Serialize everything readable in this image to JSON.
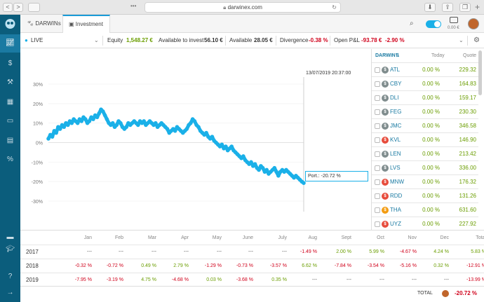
{
  "browser": {
    "url": "darwinex.com",
    "back": "<",
    "forward": ">",
    "dots": "•••",
    "reload": "↻",
    "new_tab": "+"
  },
  "appbar": {
    "tab_darwins": "DARWINs",
    "tab_investment": "Investment",
    "balance": "0.00 €"
  },
  "stats": {
    "mode": "LIVE",
    "equity_label": "Equity",
    "equity_value": "1,548.27 €",
    "invest_label": "Available to invest",
    "invest_value": "56.10 €",
    "avail_label": "Available",
    "avail_value": "28.05 €",
    "div_label": "Divergence",
    "div_value": "-0.38 %",
    "pnl_label": "Open P&L",
    "pnl_value": "-93.78 €",
    "pnl_pct": "-2.90 %"
  },
  "chart": {
    "timestamp": "13/07/2019 20:37:00",
    "tooltip": "Port.: -20.72 %",
    "color": "#1ab0e8"
  },
  "chart_data": {
    "type": "line",
    "ylim": [
      -30,
      30
    ],
    "yticks": [
      "30%",
      "20%",
      "10%",
      "0%",
      "-10%",
      "-20%",
      "-30%"
    ],
    "ytick_values": [
      30,
      20,
      10,
      0,
      -10,
      -20,
      -30
    ],
    "series": [
      {
        "values": [
          2,
          4,
          3,
          6,
          5,
          8,
          7,
          9,
          8,
          10,
          9,
          11,
          10,
          12,
          11,
          10,
          12,
          11,
          13,
          12,
          10,
          11,
          13,
          12,
          14,
          13,
          15,
          17,
          16,
          14,
          12,
          10,
          9,
          10,
          8,
          9,
          11,
          10,
          8,
          7,
          8,
          10,
          9,
          10,
          11,
          10,
          9,
          11,
          10,
          11,
          9,
          10,
          11,
          10,
          9,
          10,
          8,
          9,
          10,
          9,
          8,
          7,
          5,
          6,
          7,
          6,
          8,
          7,
          6,
          5,
          6,
          7,
          9,
          10,
          12,
          11,
          9,
          8,
          6,
          5,
          4,
          5,
          3,
          2,
          3,
          1,
          0,
          -1,
          -2,
          -1,
          -3,
          -2,
          -4,
          -3,
          -2,
          -4,
          -5,
          -6,
          -7,
          -8,
          -7,
          -9,
          -10,
          -11,
          -10,
          -12,
          -11,
          -13,
          -14,
          -12,
          -13,
          -15,
          -14,
          -16,
          -15,
          -14,
          -13,
          -15,
          -17,
          -15,
          -14,
          -15,
          -14,
          -15,
          -16,
          -17,
          -18,
          -17,
          -18,
          -19,
          -20,
          -20.72
        ]
      }
    ]
  },
  "darwins": {
    "col_name": "DARWIN⇅",
    "col_today": "Today",
    "col_quote": "Quote",
    "rows": [
      {
        "name": "ATL",
        "today": "0.00 %",
        "quote": "229.32",
        "color": "#7f8c8d"
      },
      {
        "name": "CBY",
        "today": "0.00 %",
        "quote": "164.83",
        "color": "#7f8c8d"
      },
      {
        "name": "DLI",
        "today": "0.00 %",
        "quote": "159.17",
        "color": "#7f8c8d"
      },
      {
        "name": "FEG",
        "today": "0.00 %",
        "quote": "230.30",
        "color": "#7f8c8d"
      },
      {
        "name": "JMC",
        "today": "0.00 %",
        "quote": "346.58",
        "color": "#7f8c8d"
      },
      {
        "name": "KVL",
        "today": "0.00 %",
        "quote": "146.90",
        "color": "#e74c3c"
      },
      {
        "name": "LEN",
        "today": "0.00 %",
        "quote": "213.42",
        "color": "#7f8c8d"
      },
      {
        "name": "LVS",
        "today": "0.00 %",
        "quote": "336.00",
        "color": "#7f8c8d"
      },
      {
        "name": "MNW",
        "today": "0.00 %",
        "quote": "176.32",
        "color": "#e74c3c"
      },
      {
        "name": "RDD",
        "today": "0.00 %",
        "quote": "131.26",
        "color": "#e74c3c"
      },
      {
        "name": "THA",
        "today": "0.00 %",
        "quote": "631.60",
        "color": "#f39c12"
      },
      {
        "name": "UYZ",
        "today": "0.00 %",
        "quote": "227.92",
        "color": "#e74c3c"
      }
    ]
  },
  "returns": {
    "months": [
      "Jan",
      "Feb",
      "Mar",
      "Apr",
      "May",
      "June",
      "July",
      "Aug",
      "Sept",
      "Oct",
      "Nov",
      "Dec",
      "Total"
    ],
    "rows": [
      {
        "year": "2017",
        "vals": [
          "---",
          "---",
          "---",
          "---",
          "---",
          "---",
          "---",
          "-1.49 %",
          "2.00 %",
          "5.99 %",
          "-4.67 %",
          "4.24 %",
          "5.83 %"
        ]
      },
      {
        "year": "2018",
        "vals": [
          "-0.32 %",
          "-0.72 %",
          "0.49 %",
          "2.79 %",
          "-1.29 %",
          "-0.73 %",
          "-3.57 %",
          "6.62 %",
          "-7.84 %",
          "-3.54 %",
          "-5.16 %",
          "0.32 %",
          "-12.91 %"
        ]
      },
      {
        "year": "2019",
        "vals": [
          "-7.95 %",
          "-3.19 %",
          "4.75 %",
          "-4.68 %",
          "0.03 %",
          "-3.68 %",
          "0.35 %",
          "---",
          "---",
          "---",
          "---",
          "---",
          "-13.99 %"
        ]
      }
    ],
    "total_label": "TOTAL",
    "total_value": "-20.72 %"
  }
}
